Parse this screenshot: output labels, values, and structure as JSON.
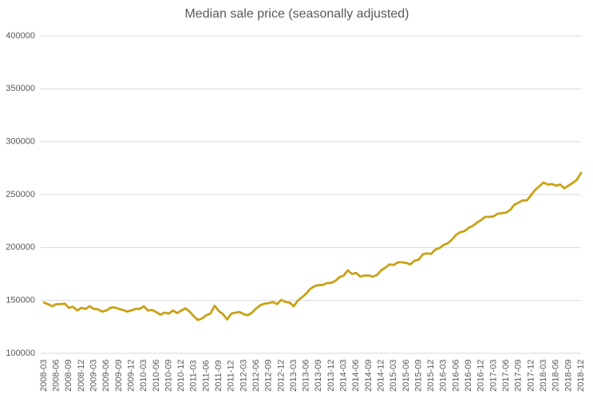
{
  "chart_data": {
    "type": "line",
    "title": "Median sale price (seasonally adjusted)",
    "categories": [
      "2008-03",
      null,
      null,
      "2008-06",
      null,
      null,
      "2008-09",
      null,
      null,
      "2008-12",
      null,
      null,
      "2009-03",
      null,
      null,
      "2009-06",
      null,
      null,
      "2009-09",
      null,
      null,
      "2009-12",
      null,
      null,
      "2010-03",
      null,
      null,
      "2010-06",
      null,
      null,
      "2010-09",
      null,
      null,
      "2010-12",
      null,
      null,
      "2011-03",
      null,
      null,
      "2011-06",
      null,
      null,
      "2011-09",
      null,
      null,
      "2011-12",
      null,
      null,
      "2012-03",
      null,
      null,
      "2012-06",
      null,
      null,
      "2012-09",
      null,
      null,
      "2012-12",
      null,
      null,
      "2013-03",
      null,
      null,
      "2013-06",
      null,
      null,
      "2013-09",
      null,
      null,
      "2013-12",
      null,
      null,
      "2014-03",
      null,
      null,
      "2014-06",
      null,
      null,
      "2014-09",
      null,
      null,
      "2014-12",
      null,
      null,
      "2015-03",
      null,
      null,
      "2015-06",
      null,
      null,
      "2015-09",
      null,
      null,
      "2015-12",
      null,
      null,
      "2016-03",
      null,
      null,
      "2016-06",
      null,
      null,
      "2016-09",
      null,
      null,
      "2016-12",
      null,
      null,
      "2017-03",
      null,
      null,
      "2017-06",
      null,
      null,
      "2017-09",
      null,
      null,
      "2017-12",
      null,
      null,
      "2018-03",
      null,
      null,
      "2018-06",
      null,
      null,
      "2018-09",
      null,
      null,
      "2018-12"
    ],
    "values": [
      148000,
      146500,
      144500,
      146500,
      146500,
      147000,
      143000,
      144000,
      140500,
      143000,
      142000,
      144500,
      142000,
      141500,
      139500,
      140500,
      143000,
      143500,
      142000,
      141000,
      139500,
      140500,
      142000,
      142000,
      144500,
      140500,
      141000,
      139000,
      136500,
      138500,
      137500,
      140500,
      138000,
      140500,
      142500,
      139500,
      135000,
      131500,
      133000,
      136000,
      137500,
      145000,
      140000,
      137000,
      132000,
      137500,
      138500,
      139000,
      137000,
      136000,
      138500,
      142500,
      145500,
      147000,
      147500,
      148500,
      146500,
      150500,
      148500,
      148000,
      144500,
      150000,
      153000,
      156500,
      161000,
      163500,
      164500,
      164500,
      166500,
      166500,
      168500,
      172000,
      173500,
      178500,
      175000,
      176000,
      172500,
      173500,
      173500,
      172500,
      174000,
      178500,
      181000,
      184000,
      183500,
      186000,
      186000,
      185500,
      184000,
      187500,
      188500,
      193500,
      194500,
      194000,
      198000,
      199500,
      202500,
      204000,
      207500,
      212000,
      214500,
      215500,
      218500,
      220500,
      223500,
      226000,
      229000,
      229000,
      229500,
      232000,
      232500,
      233000,
      235500,
      240500,
      242500,
      244500,
      244500,
      249500,
      254500,
      258000,
      261500,
      259500,
      260000,
      258500,
      259500,
      256000,
      258500,
      261000,
      264000,
      270500
    ],
    "color": "#c9a115",
    "ylim": [
      100000,
      400000
    ],
    "yticks": [
      100000,
      150000,
      200000,
      250000,
      300000,
      350000,
      400000
    ],
    "grid": true
  }
}
